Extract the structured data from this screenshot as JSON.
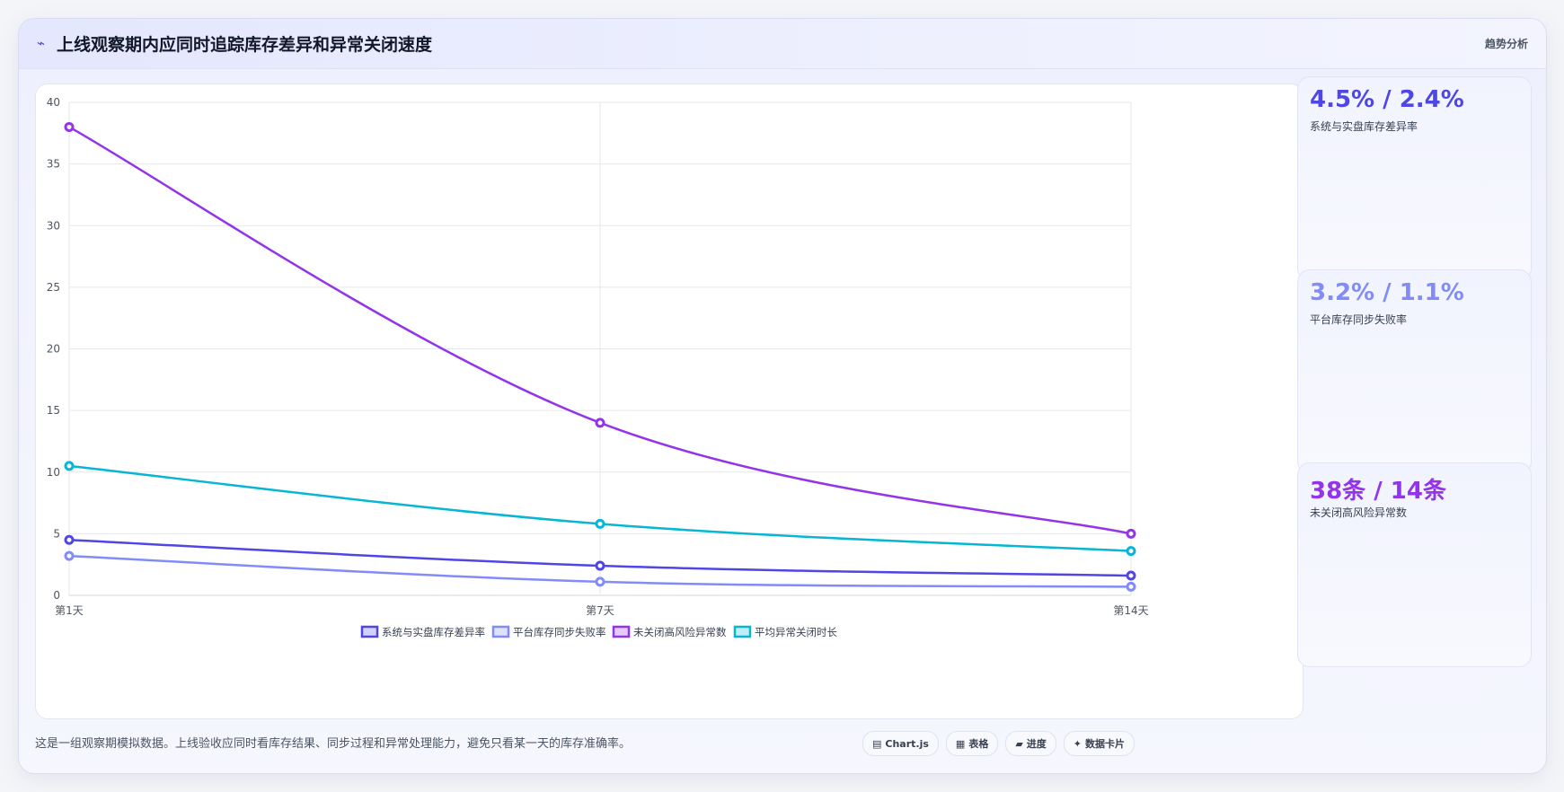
{
  "header": {
    "icon": "chart-line-icon",
    "title": "上线观察期内应同时追踪库存差异和异常关闭速度",
    "tag": "趋势分析"
  },
  "stats": [
    {
      "value": "4.5% / 2.4%",
      "label": "系统与实盘库存差异率",
      "color": "#4f46e5"
    },
    {
      "value": "3.2% / 1.1%",
      "label": "平台库存同步失败率",
      "color": "#818cf8"
    },
    {
      "value": "38条 / 14条",
      "label": "未关闭高风险异常数",
      "color": "#9333ea"
    }
  ],
  "footer": {
    "note": "这是一组观察期模拟数据。上线验收应同时看库存结果、同步过程和异常处理能力，避免只看某一天的库存准确率。",
    "pills": [
      {
        "icon": "▤",
        "label": "Chart.js"
      },
      {
        "icon": "▦",
        "label": "表格"
      },
      {
        "icon": "▰",
        "label": "进度"
      },
      {
        "icon": "✦",
        "label": "数据卡片"
      }
    ]
  },
  "chart_data": {
    "type": "line",
    "categories": [
      "第1天",
      "第7天",
      "第14天"
    ],
    "ylim": [
      0,
      40
    ],
    "yticks": [
      0,
      5,
      10,
      15,
      20,
      25,
      30,
      35,
      40
    ],
    "grid": true,
    "legend": "bottom",
    "series": [
      {
        "name": "系统与实盘库存差异率",
        "values": [
          4.5,
          2.4,
          1.6
        ],
        "color": "#4f46e5"
      },
      {
        "name": "平台库存同步失败率",
        "values": [
          3.2,
          1.1,
          0.7
        ],
        "color": "#818cf8"
      },
      {
        "name": "未关闭高风险异常数",
        "values": [
          38,
          14,
          5
        ],
        "color": "#9333ea"
      },
      {
        "name": "平均异常关闭时长",
        "values": [
          10.5,
          5.8,
          3.6
        ],
        "color": "#06b6d4"
      }
    ]
  }
}
